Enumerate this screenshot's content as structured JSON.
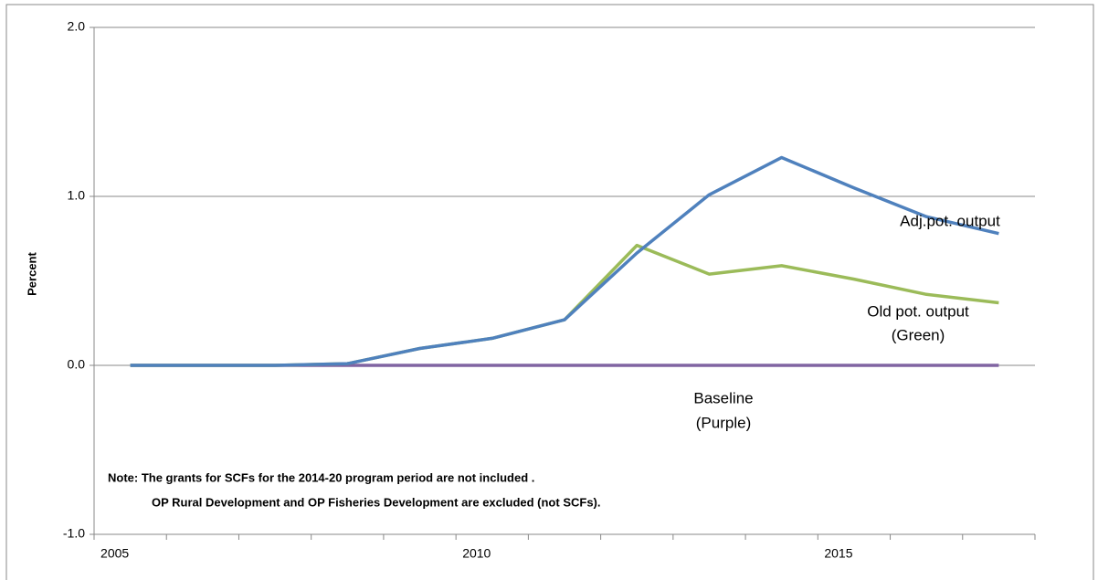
{
  "chart_data": {
    "type": "line",
    "y_label": "Percent",
    "categories": [
      "2005",
      null,
      null,
      null,
      null,
      "2010",
      null,
      null,
      null,
      null,
      "2015",
      null,
      null
    ],
    "series": [
      {
        "color": "#8064a2",
        "values": [
          0,
          0,
          0,
          0,
          0,
          0,
          0,
          0,
          0,
          0,
          0,
          0,
          0
        ]
      },
      {
        "color": "#9bbb59",
        "values": [
          0,
          0,
          0,
          0.01,
          0.1,
          0.16,
          0.27,
          0.71,
          0.54,
          0.59,
          0.51,
          0.42,
          0.37
        ]
      },
      {
        "color": "#4f81bd",
        "values": [
          0,
          0,
          0,
          0.01,
          0.1,
          0.16,
          0.27,
          0.665,
          1.01,
          1.23,
          1.05,
          0.88,
          0.78
        ]
      }
    ],
    "ylim": [
      -1,
      2
    ],
    "yticks": [
      {
        "value": -1,
        "label": "-1.0"
      },
      {
        "value": 0,
        "label": "0.0"
      },
      {
        "value": 1,
        "label": "1.0"
      },
      {
        "value": 2,
        "label": "2.0"
      }
    ],
    "grid": true,
    "annotations": [
      {
        "lines": [
          "Adj.pot. output"
        ]
      },
      {
        "lines": [
          "Old pot. output",
          "(Green)"
        ]
      },
      {
        "lines": [
          "Baseline",
          "(Purple)"
        ]
      },
      {
        "lines": [
          "Note:  The grants for SCFs for the 2014-20 program period are not included  .",
          "OP Rural  Development and OP Fisheries Development are excluded (not SCFs)."
        ]
      }
    ]
  }
}
